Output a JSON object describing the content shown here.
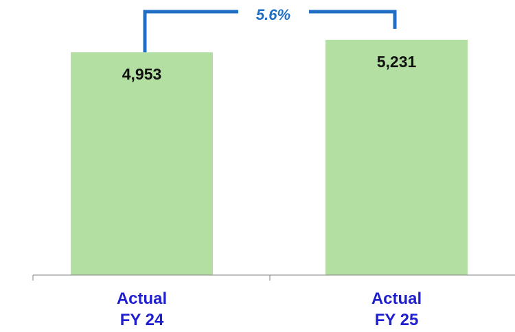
{
  "chart_data": {
    "type": "bar",
    "categories": [
      [
        "Actual",
        "FY 24"
      ],
      [
        "Actual",
        "FY 25"
      ]
    ],
    "values": [
      4953,
      5231
    ],
    "value_labels": [
      "4,953",
      "5,231"
    ],
    "growth_annotation": "5.6%",
    "ylim": [
      0,
      5231
    ],
    "grid": false,
    "legend": "none"
  },
  "colors": {
    "bar": "#b3dfa3",
    "axis": "#808080",
    "category_text": "#1f1fd0",
    "bracket": "#1f6fc4",
    "growth_text": "#1f6fc4"
  }
}
